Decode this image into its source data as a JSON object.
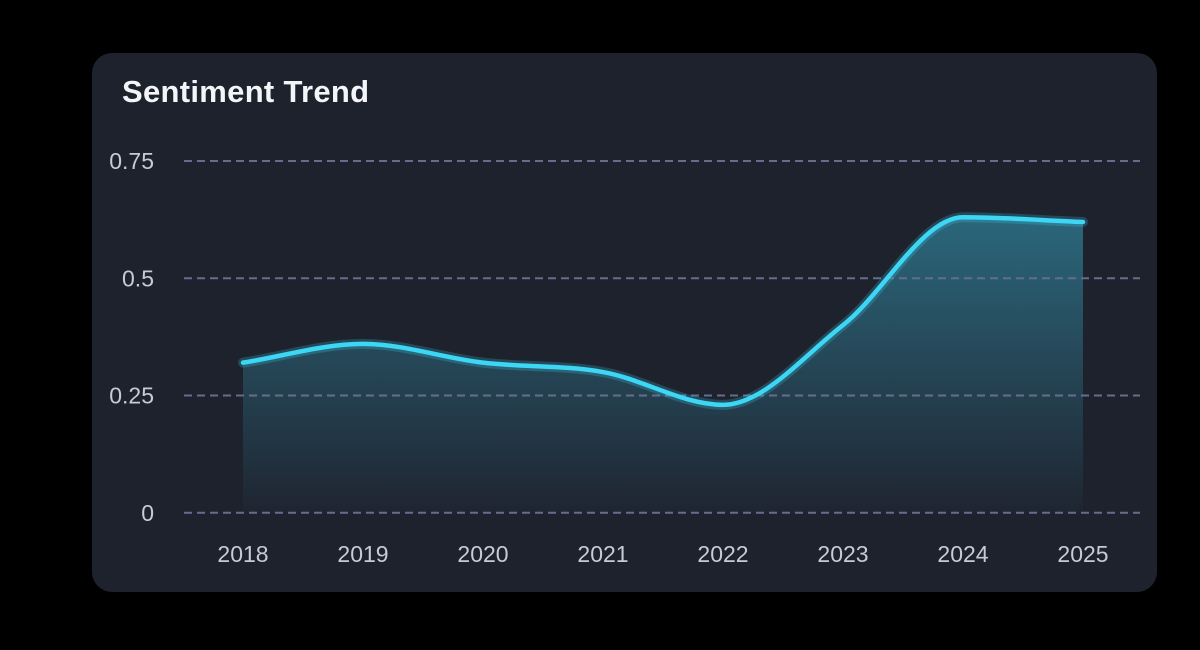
{
  "card": {
    "title": "Sentiment Trend"
  },
  "chart_data": {
    "type": "area",
    "title": "Sentiment Trend",
    "x": [
      2018,
      2019,
      2020,
      2021,
      2022,
      2023,
      2024,
      2025
    ],
    "x_labels": [
      "2018",
      "2019",
      "2020",
      "2021",
      "2022",
      "2023",
      "2024",
      "2025"
    ],
    "series": [
      {
        "name": "Sentiment",
        "values": [
          0.32,
          0.36,
          0.32,
          0.3,
          0.23,
          0.4,
          0.63,
          0.62
        ]
      }
    ],
    "y_ticks": [
      0,
      0.25,
      0.5,
      0.75
    ],
    "y_tick_labels": [
      "0",
      "0.25",
      "0.5",
      "0.75"
    ],
    "ylim": [
      0,
      0.75
    ],
    "xlabel": "",
    "ylabel": "",
    "legend": "none",
    "grid": "horizontal-dashed",
    "curve": "monotone-smooth",
    "colors": {
      "page_bg": "#000000",
      "card_bg": "#1e222d",
      "line": "#3dd6f4",
      "area_top": "rgba(61,198,232,0.42)",
      "area_bottom": "rgba(61,198,232,0.02)",
      "gridline": "#666c8e",
      "tick_label": "#c6cbd8",
      "title_color": "#f3f5f8"
    }
  }
}
